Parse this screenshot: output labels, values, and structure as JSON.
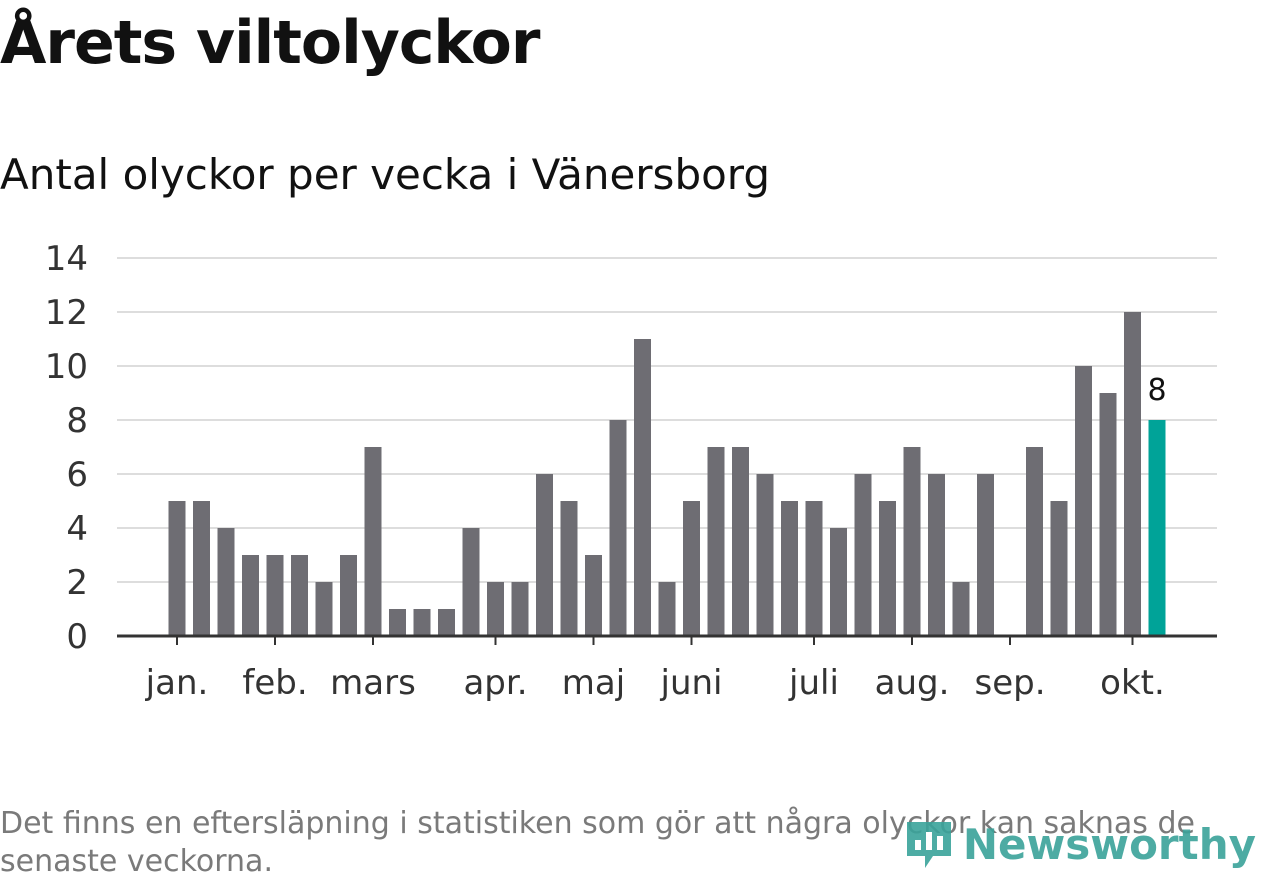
{
  "header": {
    "title": "Årets viltolyckor",
    "subtitle": "Antal olyckor per vecka i Vänersborg"
  },
  "footer": {
    "note": "Det finns en eftersläpning i statistiken som gör att några olyckor kan saknas de senaste veckorna.",
    "brand": "Newsworthy"
  },
  "colors": {
    "bar": "#6e6d73",
    "highlight": "#00a398",
    "grid": "#dddddd",
    "axis": "#333333",
    "brand": "#3aa39a"
  },
  "chart_data": {
    "type": "bar",
    "title": "Antal olyckor per vecka i Vänersborg",
    "xlabel": "",
    "ylabel": "",
    "ylim": [
      0,
      14
    ],
    "yticks": [
      0,
      2,
      4,
      6,
      8,
      10,
      12,
      14
    ],
    "grid": true,
    "weeks": [
      1,
      2,
      3,
      4,
      5,
      6,
      7,
      8,
      9,
      10,
      11,
      12,
      13,
      14,
      15,
      16,
      17,
      18,
      19,
      20,
      21,
      22,
      23,
      24,
      25,
      26,
      27,
      28,
      29,
      30,
      31,
      32,
      33,
      34,
      35,
      36,
      37,
      38,
      39,
      40,
      41
    ],
    "values": [
      5,
      5,
      4,
      3,
      3,
      3,
      2,
      3,
      7,
      1,
      1,
      1,
      4,
      2,
      2,
      6,
      5,
      3,
      8,
      11,
      2,
      5,
      7,
      7,
      6,
      5,
      5,
      4,
      6,
      5,
      7,
      6,
      2,
      6,
      0,
      7,
      5,
      10,
      9,
      12,
      8
    ],
    "highlight_index": 40,
    "highlight_label": "8",
    "x_ticks": [
      {
        "label": "jan.",
        "week": 1
      },
      {
        "label": "feb.",
        "week": 5
      },
      {
        "label": "mars",
        "week": 9
      },
      {
        "label": "apr.",
        "week": 14
      },
      {
        "label": "maj",
        "week": 18
      },
      {
        "label": "juni",
        "week": 22
      },
      {
        "label": "juli",
        "week": 27
      },
      {
        "label": "aug.",
        "week": 31
      },
      {
        "label": "sep.",
        "week": 35
      },
      {
        "label": "okt.",
        "week": 40
      }
    ]
  }
}
